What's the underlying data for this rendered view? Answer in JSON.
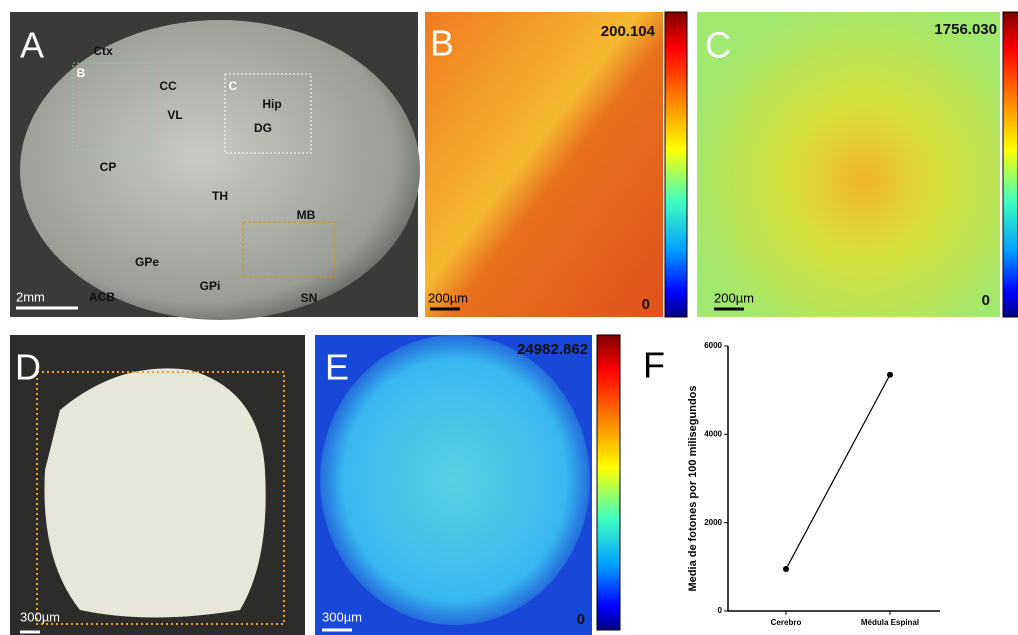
{
  "panels": [
    {
      "label": "A",
      "annotations": [
        "Ctx",
        "B",
        "CC",
        "VL",
        "C",
        "Hip",
        "DG",
        "CP",
        "TH",
        "MB",
        "GPe",
        "GPi",
        "ACB",
        "SN"
      ],
      "scale_bar": "2mm"
    },
    {
      "label": "B",
      "colorbar_max": "200.104",
      "colorbar_min": "0",
      "scale_bar": "200µm"
    },
    {
      "label": "C",
      "colorbar_max": "1756.030",
      "colorbar_min": "0",
      "scale_bar": "200µm"
    },
    {
      "label": "D",
      "scale_bar": "300µm"
    },
    {
      "label": "E",
      "colorbar_max": "24982.862",
      "colorbar_min": "0",
      "scale_bar": "300µm"
    },
    {
      "label": "F"
    }
  ],
  "chart_data": {
    "type": "line",
    "ylabel": "Media de fotones por 100 milisegundos",
    "categories": [
      "Cerebro",
      "Médula Espinal"
    ],
    "values": [
      950,
      5350
    ],
    "color": "#000000",
    "ylim": [
      0,
      6000
    ],
    "yticks": [
      0,
      2000,
      4000,
      6000
    ]
  }
}
